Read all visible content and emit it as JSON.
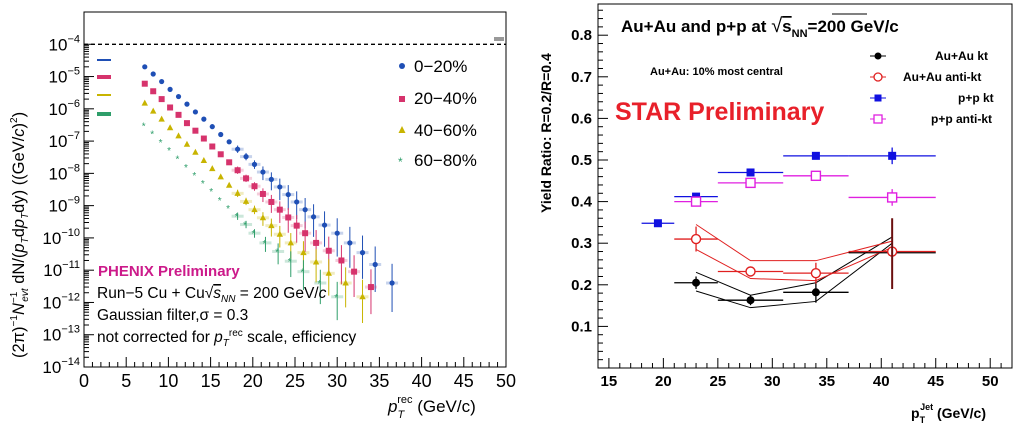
{
  "chart_data": [
    {
      "type": "scatter",
      "yscale": "log",
      "xlim": [
        0,
        50
      ],
      "ylim": [
        1e-14,
        0.001
      ],
      "xticks": [
        0,
        5,
        10,
        15,
        20,
        25,
        30,
        35,
        40,
        45,
        50
      ],
      "xtick_labels": [
        "0",
        "5",
        "10",
        "15",
        "20",
        "25",
        "30",
        "35",
        "40",
        "45",
        "50"
      ],
      "yticks": [
        1e-14,
        1e-13,
        1e-12,
        1e-11,
        1e-10,
        1e-09,
        1e-08,
        1e-07,
        1e-06,
        1e-05,
        0.0001
      ],
      "ytick_labels": [
        [
          "10",
          "−14"
        ],
        [
          "10",
          "−13"
        ],
        [
          "10",
          "−12"
        ],
        [
          "10",
          "−11"
        ],
        [
          "10",
          "−10"
        ],
        [
          "10",
          "−9"
        ],
        [
          "10",
          "−8"
        ],
        [
          "10",
          "−7"
        ],
        [
          "10",
          "−6"
        ],
        [
          "10",
          "−5"
        ],
        [
          "10",
          "−4"
        ]
      ],
      "xlabel_main": "p",
      "xlabel_sub": "T",
      "xlabel_sup": "rec",
      "xlabel_unit": " (GeV/c)",
      "ylabel": "(2π)⁻¹N⁻¹evt dN/(pT dpT dy) ((GeV/c)⁻²)",
      "reference_line_y": 0.0001,
      "legend_position": "top-right",
      "annotations": {
        "preliminary": "PHENIX Preliminary",
        "line1": "Run−5 Cu + Cu√sNN = 200 GeV/c",
        "line2": "Gaussian filter,σ = 0.3",
        "line3": "not corrected for pTrec scale, efficiency"
      },
      "series": [
        {
          "name": "0−20%",
          "marker": "circle",
          "color": "#1f4fb5",
          "x": [
            7.2,
            8.2,
            9.2,
            10.2,
            11.2,
            12.2,
            13.2,
            14.2,
            15.2,
            16.2,
            17.2,
            18.2,
            19.2,
            20.2,
            21.2,
            22.2,
            23.2,
            24.2,
            25.2,
            26.2,
            27.2,
            28.5,
            30,
            31.5,
            33,
            34.5,
            36.5
          ],
          "y": [
            2e-05,
            1.2e-05,
            7e-06,
            4e-06,
            2.4e-06,
            1.4e-06,
            8e-07,
            4.8e-07,
            2.8e-07,
            1.6e-07,
            9.5e-08,
            5.6e-08,
            3.3e-08,
            1.9e-08,
            1.1e-08,
            6.5e-09,
            3.8e-09,
            2.2e-09,
            1.3e-09,
            7.5e-10,
            4.5e-10,
            2.5e-10,
            1.4e-10,
            7e-11,
            3.5e-11,
            1.5e-11,
            4e-12
          ]
        },
        {
          "name": "20−40%",
          "marker": "square",
          "color": "#d6336c",
          "x": [
            7.2,
            8.2,
            9.2,
            10.2,
            11.2,
            12.2,
            13.2,
            14.2,
            15.2,
            16.2,
            17.2,
            18.2,
            19.2,
            20.2,
            21.2,
            22.2,
            23.2,
            24.2,
            25.2,
            26.2,
            27.5,
            29,
            30.5,
            32,
            34
          ],
          "y": [
            6e-06,
            3.5e-06,
            2e-06,
            1.1e-06,
            6.5e-07,
            3.6e-07,
            2.1e-07,
            1.2e-07,
            6.8e-08,
            3.9e-08,
            2.2e-08,
            1.25e-08,
            7e-09,
            4e-09,
            2.3e-09,
            1.3e-09,
            7.5e-10,
            4.3e-10,
            2.4e-10,
            1.4e-10,
            7e-11,
            4e-11,
            2e-11,
            9e-12,
            3e-12
          ]
        },
        {
          "name": "40−60%",
          "marker": "triangle",
          "color": "#c8b400",
          "x": [
            7.2,
            8.2,
            9.2,
            10.2,
            11.2,
            12.2,
            13.2,
            14.2,
            15.2,
            16.2,
            17.2,
            18.2,
            19.2,
            20.2,
            21.2,
            22.2,
            23.2,
            24.5,
            26,
            27.5,
            29,
            31,
            33
          ],
          "y": [
            1.5e-06,
            8.5e-07,
            4.8e-07,
            2.6e-07,
            1.45e-07,
            8e-08,
            4.5e-08,
            2.5e-08,
            1.4e-08,
            7.8e-09,
            4.3e-09,
            2.4e-09,
            1.35e-09,
            7.5e-10,
            4.2e-10,
            2.4e-10,
            1.3e-10,
            7e-11,
            3.5e-11,
            1.8e-11,
            8e-12,
            4e-12,
            1.5e-12
          ]
        },
        {
          "name": "60−80%",
          "marker": "star",
          "color": "#2e9e6a",
          "x": [
            7.2,
            8.2,
            9.2,
            10.2,
            11.2,
            12.2,
            13.2,
            14.2,
            15.2,
            16.2,
            17.2,
            18.2,
            19.2,
            20.2,
            21.5,
            23,
            24.5,
            26,
            28,
            30
          ],
          "y": [
            3e-07,
            1.7e-07,
            9.5e-08,
            5.3e-08,
            2.9e-08,
            1.6e-08,
            9e-09,
            5e-09,
            2.8e-09,
            1.5e-09,
            8.5e-10,
            4.7e-10,
            2.6e-10,
            1.4e-10,
            7e-11,
            3.8e-11,
            1.9e-11,
            9e-12,
            4e-12,
            1.5e-12
          ]
        }
      ]
    },
    {
      "type": "scatter",
      "xlim": [
        14,
        52
      ],
      "ylim": [
        0,
        0.875
      ],
      "xticks": [
        15,
        20,
        25,
        30,
        35,
        40,
        45,
        50
      ],
      "xtick_labels": [
        "15",
        "20",
        "25",
        "30",
        "35",
        "40",
        "45",
        "50"
      ],
      "yticks": [
        0.1,
        0.2,
        0.3,
        0.4,
        0.5,
        0.6,
        0.7,
        0.8
      ],
      "ytick_labels": [
        "0.1",
        "0.2",
        "0.3",
        "0.4",
        "0.5",
        "0.6",
        "0.7",
        "0.8"
      ],
      "xlabel_main": "p",
      "xlabel_sub": "T",
      "xlabel_sup": "Jet",
      "xlabel_unit": " (GeV/c)",
      "ylabel": "Yield Ratio: R=0.2/R=0.4",
      "title_prefix": "Au+Au and p+p at ",
      "title_sqrt": "s",
      "title_sqrt_sub": "NN",
      "title_suffix": "=200 GeV/c",
      "legend_position": "top-right",
      "annotations": {
        "central": "Au+Au: 10% most central",
        "preliminary": "STAR Preliminary"
      },
      "series": [
        {
          "name": "Au+Au kt",
          "marker": "filled-circle",
          "color": "#000000",
          "x": [
            23,
            28,
            34,
            41
          ],
          "y": [
            0.205,
            0.163,
            0.182,
            0.277
          ],
          "xerr": [
            [
              21,
              25
            ],
            [
              25,
              31
            ],
            [
              31,
              37
            ],
            [
              37,
              45
            ]
          ],
          "yerr": [
            0.015,
            0.012,
            0.025,
            0.08
          ],
          "band_upper": [
            0.23,
            0.175,
            0.205,
            0.315
          ],
          "band_lower": [
            0.185,
            0.145,
            0.16,
            0.3
          ]
        },
        {
          "name": "Au+Au anti-kt",
          "marker": "open-circle",
          "color": "#e02020",
          "x": [
            23,
            28,
            34,
            41
          ],
          "y": [
            0.31,
            0.232,
            0.228,
            0.28
          ],
          "xerr": [
            [
              21,
              25
            ],
            [
              25,
              31
            ],
            [
              31,
              37
            ],
            [
              37,
              45
            ]
          ],
          "yerr": [
            0.03,
            0.0,
            0.025,
            0.07
          ],
          "band_upper": [
            0.345,
            0.258,
            0.258,
            0.305
          ],
          "band_lower": [
            0.285,
            0.215,
            0.21,
            0.29
          ]
        },
        {
          "name": "p+p kt",
          "marker": "filled-square",
          "color": "#1010e0",
          "x": [
            19.5,
            23,
            28,
            34,
            41
          ],
          "y": [
            0.348,
            0.412,
            0.47,
            0.51,
            0.51
          ],
          "xerr": [
            [
              18,
              21
            ],
            [
              21,
              25
            ],
            [
              25,
              31
            ],
            [
              31,
              37
            ],
            [
              37,
              45
            ]
          ],
          "yerr": [
            0.0,
            0.0,
            0.0,
            0.0,
            0.02
          ]
        },
        {
          "name": "p+p anti-kt",
          "marker": "open-square",
          "color": "#e020e0",
          "x": [
            23,
            28,
            34,
            41
          ],
          "y": [
            0.4,
            0.445,
            0.462,
            0.41
          ],
          "xerr": [
            [
              21,
              25
            ],
            [
              25,
              31
            ],
            [
              31,
              37
            ],
            [
              37,
              45
            ]
          ],
          "yerr": [
            0.0,
            0.0,
            0.0,
            0.02
          ]
        }
      ]
    }
  ]
}
